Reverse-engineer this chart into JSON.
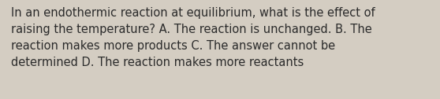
{
  "lines": [
    "In an endothermic reaction at equilibrium, what is the effect of",
    "raising the temperature? A. The reaction is unchanged. B. The",
    "reaction makes more products C. The answer cannot be",
    "determined D. The reaction makes more reactants"
  ],
  "background_color": "#d4cdc2",
  "text_color": "#2b2b2b",
  "font_size": 10.5,
  "fig_width": 5.58,
  "fig_height": 1.26,
  "dpi": 100
}
